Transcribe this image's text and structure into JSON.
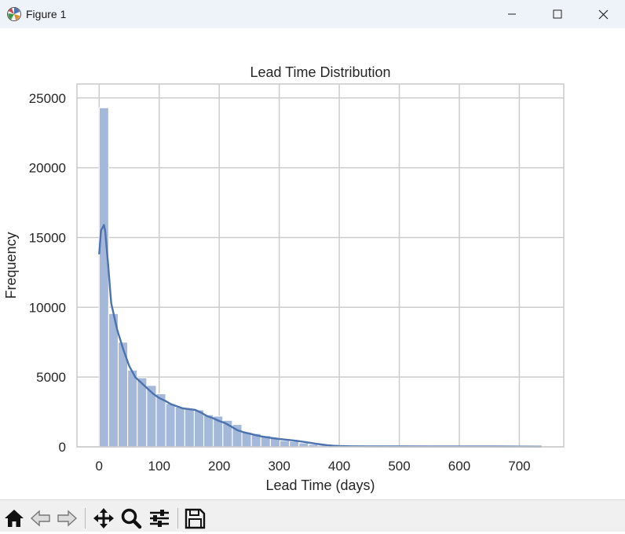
{
  "window": {
    "title": "Figure 1"
  },
  "toolbar": {
    "buttons": [
      {
        "name": "home-icon",
        "label": "Home"
      },
      {
        "name": "back-arrow-icon",
        "label": "Back"
      },
      {
        "name": "forward-arrow-icon",
        "label": "Forward"
      },
      {
        "name": "pan-icon",
        "label": "Pan"
      },
      {
        "name": "zoom-icon",
        "label": "Zoom"
      },
      {
        "name": "configure-subplots-icon",
        "label": "Configure subplots"
      },
      {
        "name": "save-icon",
        "label": "Save"
      }
    ]
  },
  "chart_data": {
    "type": "bar",
    "title": "Lead Time Distribution",
    "xlabel": "Lead Time (days)",
    "ylabel": "Frequency",
    "xlim": [
      -37,
      774
    ],
    "ylim": [
      0,
      26000
    ],
    "xticks": [
      0,
      100,
      200,
      300,
      400,
      500,
      600,
      700
    ],
    "yticks": [
      0,
      5000,
      10000,
      15000,
      20000,
      25000
    ],
    "grid": true,
    "bin_width": 15.85,
    "bin_start": 0,
    "values": [
      24300,
      9550,
      7500,
      5500,
      4950,
      4400,
      3800,
      3100,
      2850,
      2750,
      2650,
      2300,
      2200,
      1900,
      1600,
      1050,
      950,
      800,
      600,
      450,
      400,
      280,
      180,
      110,
      80,
      60,
      50,
      40,
      35,
      30,
      30,
      30,
      25,
      25,
      20,
      20,
      20,
      20,
      20,
      20,
      15,
      15,
      15,
      15,
      15,
      10,
      10
    ],
    "bar_color": "#a4b8d9",
    "kde": {
      "color": "#4c72b0",
      "x": [
        0,
        3,
        8,
        10,
        15,
        20,
        30,
        40,
        50,
        60,
        70,
        80,
        90,
        100,
        110,
        120,
        130,
        140,
        150,
        160,
        170,
        180,
        190,
        200,
        210,
        220,
        230,
        240,
        250,
        260,
        270,
        280,
        290,
        300,
        310,
        320,
        330,
        340,
        350,
        360,
        370,
        380,
        390,
        400,
        420,
        450,
        500,
        550,
        600,
        650,
        700,
        737
      ],
      "y": [
        13800,
        15500,
        15900,
        15500,
        13000,
        10300,
        8400,
        7000,
        5800,
        5000,
        4600,
        4200,
        3800,
        3500,
        3300,
        3050,
        2900,
        2750,
        2700,
        2650,
        2450,
        2200,
        2050,
        1850,
        1700,
        1450,
        1200,
        1050,
        950,
        850,
        750,
        680,
        620,
        560,
        520,
        470,
        420,
        360,
        300,
        230,
        170,
        120,
        80,
        55,
        40,
        35,
        30,
        25,
        20,
        20,
        15,
        12
      ]
    }
  }
}
